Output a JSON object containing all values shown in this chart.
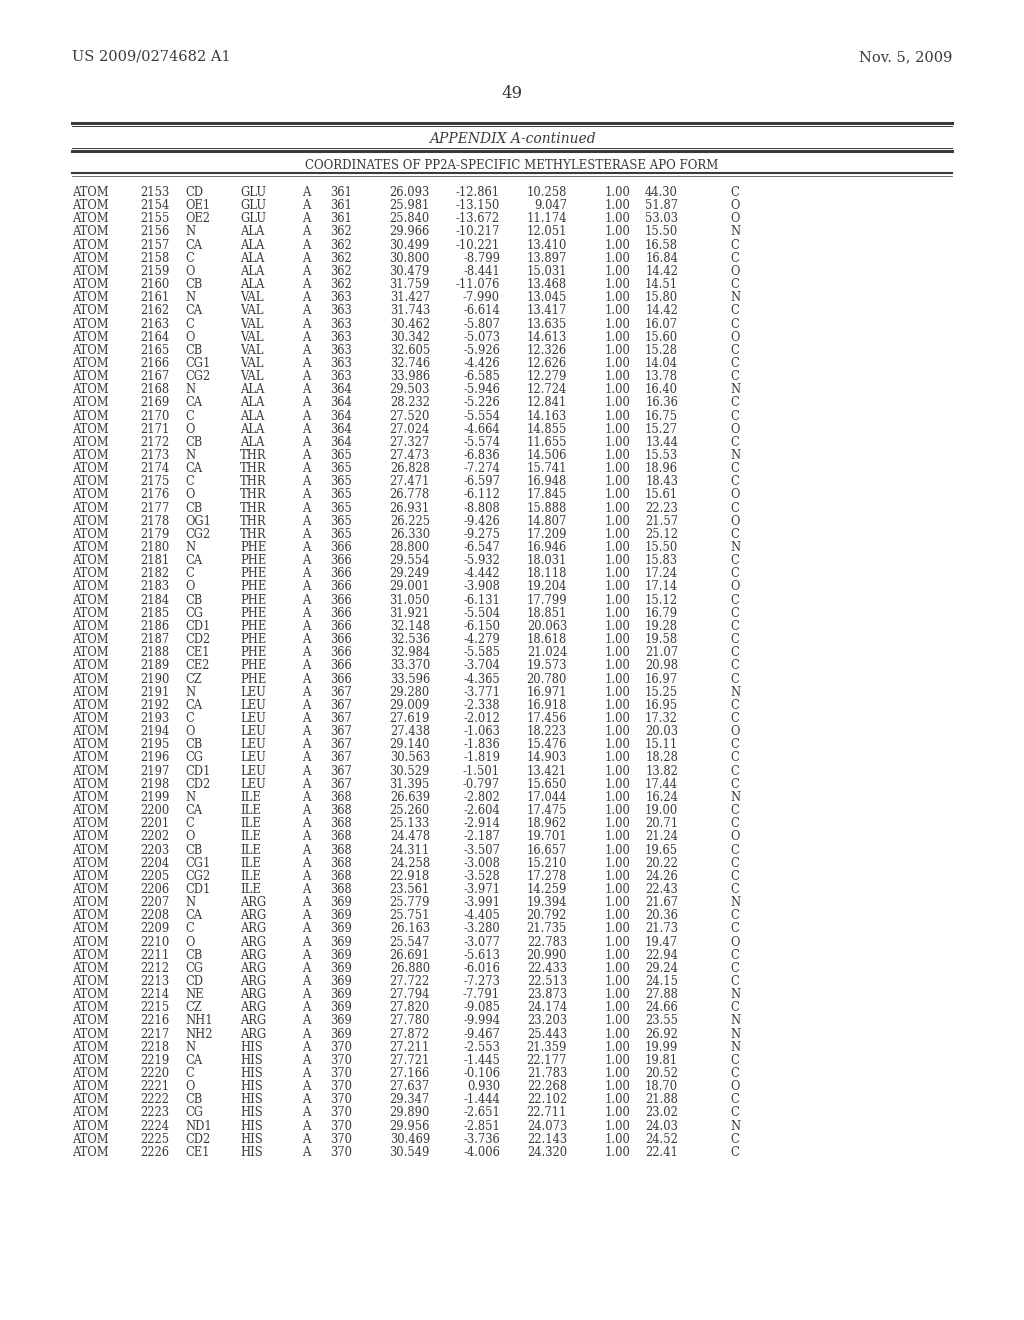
{
  "header_left": "US 2009/0274682 A1",
  "header_right": "Nov. 5, 2009",
  "page_number": "49",
  "appendix_title": "APPENDIX A-continued",
  "table_title": "COORDINATES OF PP2A-SPECIFIC METHYLESTERASE APO FORM",
  "bg_color": "#ffffff",
  "text_color": "#3a3a3a",
  "rows": [
    [
      "ATOM",
      "2153",
      "CD",
      "GLU",
      "A",
      "361",
      "26.093",
      "-12.861",
      "10.258",
      "1.00",
      "44.30",
      "C"
    ],
    [
      "ATOM",
      "2154",
      "OE1",
      "GLU",
      "A",
      "361",
      "25.981",
      "-13.150",
      "9.047",
      "1.00",
      "51.87",
      "O"
    ],
    [
      "ATOM",
      "2155",
      "OE2",
      "GLU",
      "A",
      "361",
      "25.840",
      "-13.672",
      "11.174",
      "1.00",
      "53.03",
      "O"
    ],
    [
      "ATOM",
      "2156",
      "N",
      "ALA",
      "A",
      "362",
      "29.966",
      "-10.217",
      "12.051",
      "1.00",
      "15.50",
      "N"
    ],
    [
      "ATOM",
      "2157",
      "CA",
      "ALA",
      "A",
      "362",
      "30.499",
      "-10.221",
      "13.410",
      "1.00",
      "16.58",
      "C"
    ],
    [
      "ATOM",
      "2158",
      "C",
      "ALA",
      "A",
      "362",
      "30.800",
      "-8.799",
      "13.897",
      "1.00",
      "16.84",
      "C"
    ],
    [
      "ATOM",
      "2159",
      "O",
      "ALA",
      "A",
      "362",
      "30.479",
      "-8.441",
      "15.031",
      "1.00",
      "14.42",
      "O"
    ],
    [
      "ATOM",
      "2160",
      "CB",
      "ALA",
      "A",
      "362",
      "31.759",
      "-11.076",
      "13.468",
      "1.00",
      "14.51",
      "C"
    ],
    [
      "ATOM",
      "2161",
      "N",
      "VAL",
      "A",
      "363",
      "31.427",
      "-7.990",
      "13.045",
      "1.00",
      "15.80",
      "N"
    ],
    [
      "ATOM",
      "2162",
      "CA",
      "VAL",
      "A",
      "363",
      "31.743",
      "-6.614",
      "13.417",
      "1.00",
      "14.42",
      "C"
    ],
    [
      "ATOM",
      "2163",
      "C",
      "VAL",
      "A",
      "363",
      "30.462",
      "-5.807",
      "13.635",
      "1.00",
      "16.07",
      "C"
    ],
    [
      "ATOM",
      "2164",
      "O",
      "VAL",
      "A",
      "363",
      "30.342",
      "-5.073",
      "14.613",
      "1.00",
      "15.60",
      "O"
    ],
    [
      "ATOM",
      "2165",
      "CB",
      "VAL",
      "A",
      "363",
      "32.605",
      "-5.926",
      "12.326",
      "1.00",
      "15.28",
      "C"
    ],
    [
      "ATOM",
      "2166",
      "CG1",
      "VAL",
      "A",
      "363",
      "32.746",
      "-4.426",
      "12.626",
      "1.00",
      "14.04",
      "C"
    ],
    [
      "ATOM",
      "2167",
      "CG2",
      "VAL",
      "A",
      "363",
      "33.986",
      "-6.585",
      "12.279",
      "1.00",
      "13.78",
      "C"
    ],
    [
      "ATOM",
      "2168",
      "N",
      "ALA",
      "A",
      "364",
      "29.503",
      "-5.946",
      "12.724",
      "1.00",
      "16.40",
      "N"
    ],
    [
      "ATOM",
      "2169",
      "CA",
      "ALA",
      "A",
      "364",
      "28.232",
      "-5.226",
      "12.841",
      "1.00",
      "16.36",
      "C"
    ],
    [
      "ATOM",
      "2170",
      "C",
      "ALA",
      "A",
      "364",
      "27.520",
      "-5.554",
      "14.163",
      "1.00",
      "16.75",
      "C"
    ],
    [
      "ATOM",
      "2171",
      "O",
      "ALA",
      "A",
      "364",
      "27.024",
      "-4.664",
      "14.855",
      "1.00",
      "15.27",
      "O"
    ],
    [
      "ATOM",
      "2172",
      "CB",
      "ALA",
      "A",
      "364",
      "27.327",
      "-5.574",
      "11.655",
      "1.00",
      "13.44",
      "C"
    ],
    [
      "ATOM",
      "2173",
      "N",
      "THR",
      "A",
      "365",
      "27.473",
      "-6.836",
      "14.506",
      "1.00",
      "15.53",
      "N"
    ],
    [
      "ATOM",
      "2174",
      "CA",
      "THR",
      "A",
      "365",
      "26.828",
      "-7.274",
      "15.741",
      "1.00",
      "18.96",
      "C"
    ],
    [
      "ATOM",
      "2175",
      "C",
      "THR",
      "A",
      "365",
      "27.471",
      "-6.597",
      "16.948",
      "1.00",
      "18.43",
      "C"
    ],
    [
      "ATOM",
      "2176",
      "O",
      "THR",
      "A",
      "365",
      "26.778",
      "-6.112",
      "17.845",
      "1.00",
      "15.61",
      "O"
    ],
    [
      "ATOM",
      "2177",
      "CB",
      "THR",
      "A",
      "365",
      "26.931",
      "-8.808",
      "15.888",
      "1.00",
      "22.23",
      "C"
    ],
    [
      "ATOM",
      "2178",
      "OG1",
      "THR",
      "A",
      "365",
      "26.225",
      "-9.426",
      "14.807",
      "1.00",
      "21.57",
      "O"
    ],
    [
      "ATOM",
      "2179",
      "CG2",
      "THR",
      "A",
      "365",
      "26.330",
      "-9.275",
      "17.209",
      "1.00",
      "25.12",
      "C"
    ],
    [
      "ATOM",
      "2180",
      "N",
      "PHE",
      "A",
      "366",
      "28.800",
      "-6.547",
      "16.946",
      "1.00",
      "15.50",
      "N"
    ],
    [
      "ATOM",
      "2181",
      "CA",
      "PHE",
      "A",
      "366",
      "29.554",
      "-5.932",
      "18.031",
      "1.00",
      "15.83",
      "C"
    ],
    [
      "ATOM",
      "2182",
      "C",
      "PHE",
      "A",
      "366",
      "29.249",
      "-4.442",
      "18.118",
      "1.00",
      "17.24",
      "C"
    ],
    [
      "ATOM",
      "2183",
      "O",
      "PHE",
      "A",
      "366",
      "29.001",
      "-3.908",
      "19.204",
      "1.00",
      "17.14",
      "O"
    ],
    [
      "ATOM",
      "2184",
      "CB",
      "PHE",
      "A",
      "366",
      "31.050",
      "-6.131",
      "17.799",
      "1.00",
      "15.12",
      "C"
    ],
    [
      "ATOM",
      "2185",
      "CG",
      "PHE",
      "A",
      "366",
      "31.921",
      "-5.504",
      "18.851",
      "1.00",
      "16.79",
      "C"
    ],
    [
      "ATOM",
      "2186",
      "CD1",
      "PHE",
      "A",
      "366",
      "32.148",
      "-6.150",
      "20.063",
      "1.00",
      "19.28",
      "C"
    ],
    [
      "ATOM",
      "2187",
      "CD2",
      "PHE",
      "A",
      "366",
      "32.536",
      "-4.279",
      "18.618",
      "1.00",
      "19.58",
      "C"
    ],
    [
      "ATOM",
      "2188",
      "CE1",
      "PHE",
      "A",
      "366",
      "32.984",
      "-5.585",
      "21.024",
      "1.00",
      "21.07",
      "C"
    ],
    [
      "ATOM",
      "2189",
      "CE2",
      "PHE",
      "A",
      "366",
      "33.370",
      "-3.704",
      "19.573",
      "1.00",
      "20.98",
      "C"
    ],
    [
      "ATOM",
      "2190",
      "CZ",
      "PHE",
      "A",
      "366",
      "33.596",
      "-4.365",
      "20.780",
      "1.00",
      "16.97",
      "C"
    ],
    [
      "ATOM",
      "2191",
      "N",
      "LEU",
      "A",
      "367",
      "29.280",
      "-3.771",
      "16.971",
      "1.00",
      "15.25",
      "N"
    ],
    [
      "ATOM",
      "2192",
      "CA",
      "LEU",
      "A",
      "367",
      "29.009",
      "-2.338",
      "16.918",
      "1.00",
      "16.95",
      "C"
    ],
    [
      "ATOM",
      "2193",
      "C",
      "LEU",
      "A",
      "367",
      "27.619",
      "-2.012",
      "17.456",
      "1.00",
      "17.32",
      "C"
    ],
    [
      "ATOM",
      "2194",
      "O",
      "LEU",
      "A",
      "367",
      "27.438",
      "-1.063",
      "18.223",
      "1.00",
      "20.03",
      "O"
    ],
    [
      "ATOM",
      "2195",
      "CB",
      "LEU",
      "A",
      "367",
      "29.140",
      "-1.836",
      "15.476",
      "1.00",
      "15.11",
      "C"
    ],
    [
      "ATOM",
      "2196",
      "CG",
      "LEU",
      "A",
      "367",
      "30.563",
      "-1.819",
      "14.903",
      "1.00",
      "18.28",
      "C"
    ],
    [
      "ATOM",
      "2197",
      "CD1",
      "LEU",
      "A",
      "367",
      "30.529",
      "-1.501",
      "13.421",
      "1.00",
      "13.82",
      "C"
    ],
    [
      "ATOM",
      "2198",
      "CD2",
      "LEU",
      "A",
      "367",
      "31.395",
      "-0.797",
      "15.650",
      "1.00",
      "17.44",
      "C"
    ],
    [
      "ATOM",
      "2199",
      "N",
      "ILE",
      "A",
      "368",
      "26.639",
      "-2.802",
      "17.044",
      "1.00",
      "16.24",
      "N"
    ],
    [
      "ATOM",
      "2200",
      "CA",
      "ILE",
      "A",
      "368",
      "25.260",
      "-2.604",
      "17.475",
      "1.00",
      "19.00",
      "C"
    ],
    [
      "ATOM",
      "2201",
      "C",
      "ILE",
      "A",
      "368",
      "25.133",
      "-2.914",
      "18.962",
      "1.00",
      "20.71",
      "C"
    ],
    [
      "ATOM",
      "2202",
      "O",
      "ILE",
      "A",
      "368",
      "24.478",
      "-2.187",
      "19.701",
      "1.00",
      "21.24",
      "O"
    ],
    [
      "ATOM",
      "2203",
      "CB",
      "ILE",
      "A",
      "368",
      "24.311",
      "-3.507",
      "16.657",
      "1.00",
      "19.65",
      "C"
    ],
    [
      "ATOM",
      "2204",
      "CG1",
      "ILE",
      "A",
      "368",
      "24.258",
      "-3.008",
      "15.210",
      "1.00",
      "20.22",
      "C"
    ],
    [
      "ATOM",
      "2205",
      "CG2",
      "ILE",
      "A",
      "368",
      "22.918",
      "-3.528",
      "17.278",
      "1.00",
      "24.26",
      "C"
    ],
    [
      "ATOM",
      "2206",
      "CD1",
      "ILE",
      "A",
      "368",
      "23.561",
      "-3.971",
      "14.259",
      "1.00",
      "22.43",
      "C"
    ],
    [
      "ATOM",
      "2207",
      "N",
      "ARG",
      "A",
      "369",
      "25.779",
      "-3.991",
      "19.394",
      "1.00",
      "21.67",
      "N"
    ],
    [
      "ATOM",
      "2208",
      "CA",
      "ARG",
      "A",
      "369",
      "25.751",
      "-4.405",
      "20.792",
      "1.00",
      "20.36",
      "C"
    ],
    [
      "ATOM",
      "2209",
      "C",
      "ARG",
      "A",
      "369",
      "26.163",
      "-3.280",
      "21.735",
      "1.00",
      "21.73",
      "C"
    ],
    [
      "ATOM",
      "2210",
      "O",
      "ARG",
      "A",
      "369",
      "25.547",
      "-3.077",
      "22.783",
      "1.00",
      "19.47",
      "O"
    ],
    [
      "ATOM",
      "2211",
      "CB",
      "ARG",
      "A",
      "369",
      "26.691",
      "-5.613",
      "20.990",
      "1.00",
      "22.94",
      "C"
    ],
    [
      "ATOM",
      "2212",
      "CG",
      "ARG",
      "A",
      "369",
      "26.880",
      "-6.016",
      "22.433",
      "1.00",
      "29.24",
      "C"
    ],
    [
      "ATOM",
      "2213",
      "CD",
      "ARG",
      "A",
      "369",
      "27.722",
      "-7.273",
      "22.513",
      "1.00",
      "24.15",
      "C"
    ],
    [
      "ATOM",
      "2214",
      "NE",
      "ARG",
      "A",
      "369",
      "27.794",
      "-7.791",
      "23.873",
      "1.00",
      "27.88",
      "N"
    ],
    [
      "ATOM",
      "2215",
      "CZ",
      "ARG",
      "A",
      "369",
      "27.820",
      "-9.085",
      "24.174",
      "1.00",
      "24.66",
      "C"
    ],
    [
      "ATOM",
      "2216",
      "NH1",
      "ARG",
      "A",
      "369",
      "27.780",
      "-9.994",
      "23.203",
      "1.00",
      "23.55",
      "N"
    ],
    [
      "ATOM",
      "2217",
      "NH2",
      "ARG",
      "A",
      "369",
      "27.872",
      "-9.467",
      "25.443",
      "1.00",
      "26.92",
      "N"
    ],
    [
      "ATOM",
      "2218",
      "N",
      "HIS",
      "A",
      "370",
      "27.211",
      "-2.553",
      "21.359",
      "1.00",
      "19.99",
      "N"
    ],
    [
      "ATOM",
      "2219",
      "CA",
      "HIS",
      "A",
      "370",
      "27.721",
      "-1.445",
      "22.177",
      "1.00",
      "19.81",
      "C"
    ],
    [
      "ATOM",
      "2220",
      "C",
      "HIS",
      "A",
      "370",
      "27.166",
      "-0.106",
      "21.783",
      "1.00",
      "20.52",
      "C"
    ],
    [
      "ATOM",
      "2221",
      "O",
      "HIS",
      "A",
      "370",
      "27.637",
      "0.930",
      "22.268",
      "1.00",
      "18.70",
      "O"
    ],
    [
      "ATOM",
      "2222",
      "CB",
      "HIS",
      "A",
      "370",
      "29.347",
      "-1.444",
      "22.102",
      "1.00",
      "21.88",
      "C"
    ],
    [
      "ATOM",
      "2223",
      "CG",
      "HIS",
      "A",
      "370",
      "29.890",
      "-2.651",
      "22.711",
      "1.00",
      "23.02",
      "C"
    ],
    [
      "ATOM",
      "2224",
      "ND1",
      "HIS",
      "A",
      "370",
      "29.956",
      "-2.851",
      "24.073",
      "1.00",
      "24.03",
      "N"
    ],
    [
      "ATOM",
      "2225",
      "CD2",
      "HIS",
      "A",
      "370",
      "30.469",
      "-3.736",
      "22.143",
      "1.00",
      "24.52",
      "C"
    ],
    [
      "ATOM",
      "2226",
      "CE1",
      "HIS",
      "A",
      "370",
      "30.549",
      "-4.006",
      "24.320",
      "1.00",
      "22.41",
      "C"
    ]
  ]
}
